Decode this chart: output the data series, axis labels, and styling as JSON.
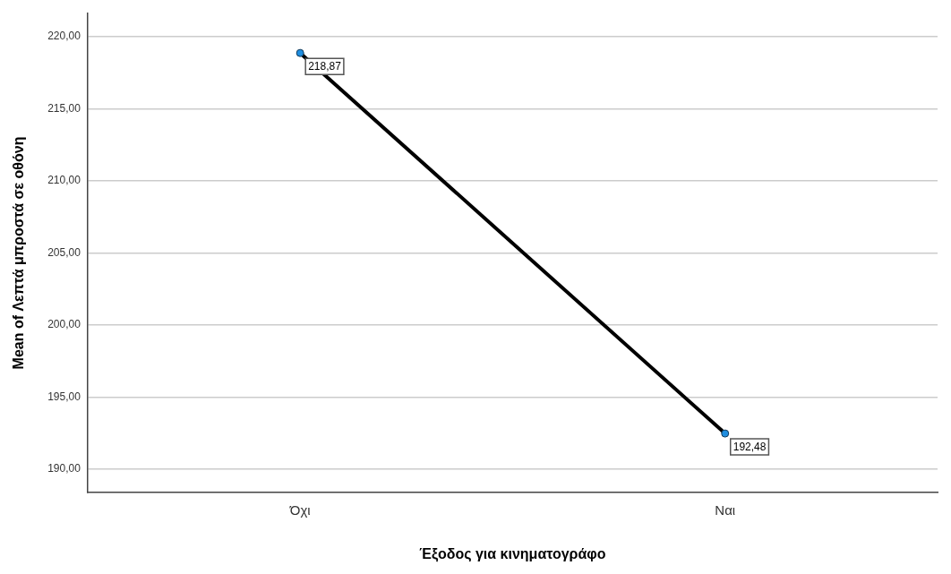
{
  "chart_data": {
    "type": "line",
    "xlabel": "Έξοδος για κινηματογράφο",
    "ylabel": "Mean of Λεπτά μπροστά σε οθόνη",
    "categories": [
      "Όχι",
      "Ναι"
    ],
    "series": [
      {
        "color": "#000000",
        "values": [
          218.87,
          192.48
        ],
        "value_labels": [
          "218,87",
          "192,48"
        ]
      }
    ],
    "marker": "circle",
    "line_style": "solid",
    "grid": "y",
    "legend": false,
    "ylim": [
      188.4,
      221.6
    ],
    "yticks": [
      {
        "value": 190,
        "label": "190,00"
      },
      {
        "value": 195,
        "label": "195,00"
      },
      {
        "value": 200,
        "label": "200,00"
      },
      {
        "value": 205,
        "label": "205,00"
      },
      {
        "value": 210,
        "label": "210,00"
      },
      {
        "value": 215,
        "label": "215,00"
      },
      {
        "value": 220,
        "label": "220,00"
      }
    ]
  }
}
